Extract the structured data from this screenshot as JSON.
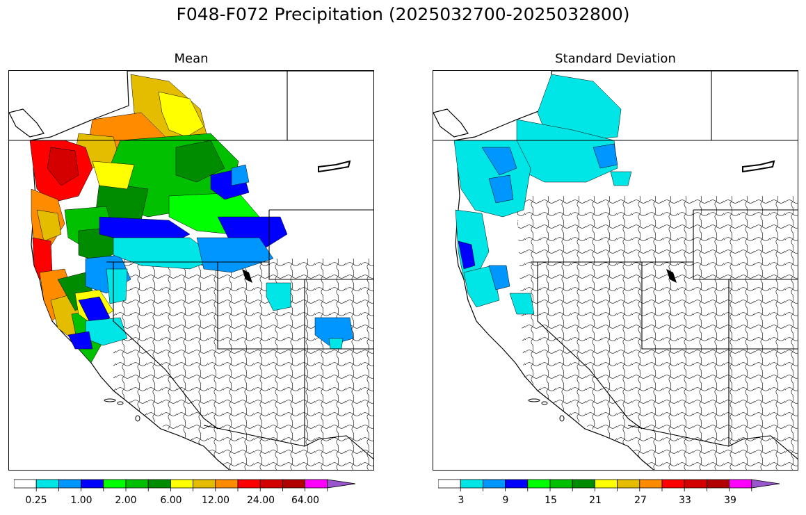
{
  "title": "F048-F072 Precipitation (2025032700-2025032800)",
  "panels": [
    {
      "subtitle": "Mean",
      "colorbar_labels": [
        "0.25",
        "1.00",
        "2.00",
        "6.00",
        "12.00",
        "24.00",
        "64.00"
      ]
    },
    {
      "subtitle": "Standard Deviation",
      "colorbar_labels": [
        "3",
        "9",
        "15",
        "21",
        "27",
        "33",
        "39"
      ]
    }
  ],
  "colorbar_colors": [
    "#ffffff",
    "#00e5e5",
    "#0096ff",
    "#0000ff",
    "#00ff00",
    "#00c000",
    "#008c00",
    "#ffff00",
    "#e5bd00",
    "#ff8c00",
    "#ff0000",
    "#d40000",
    "#b00000",
    "#ff00ff",
    "#9955cc"
  ],
  "palette": {
    "cyan": "#00e5e5",
    "lightblue": "#0096ff",
    "blue": "#0000ff",
    "lime": "#00ff00",
    "green": "#00c000",
    "darkgreen": "#008c00",
    "yellow": "#ffff00",
    "gold": "#e5bd00",
    "orange": "#ff8c00",
    "red": "#ff0000",
    "darkred": "#d40000"
  }
}
